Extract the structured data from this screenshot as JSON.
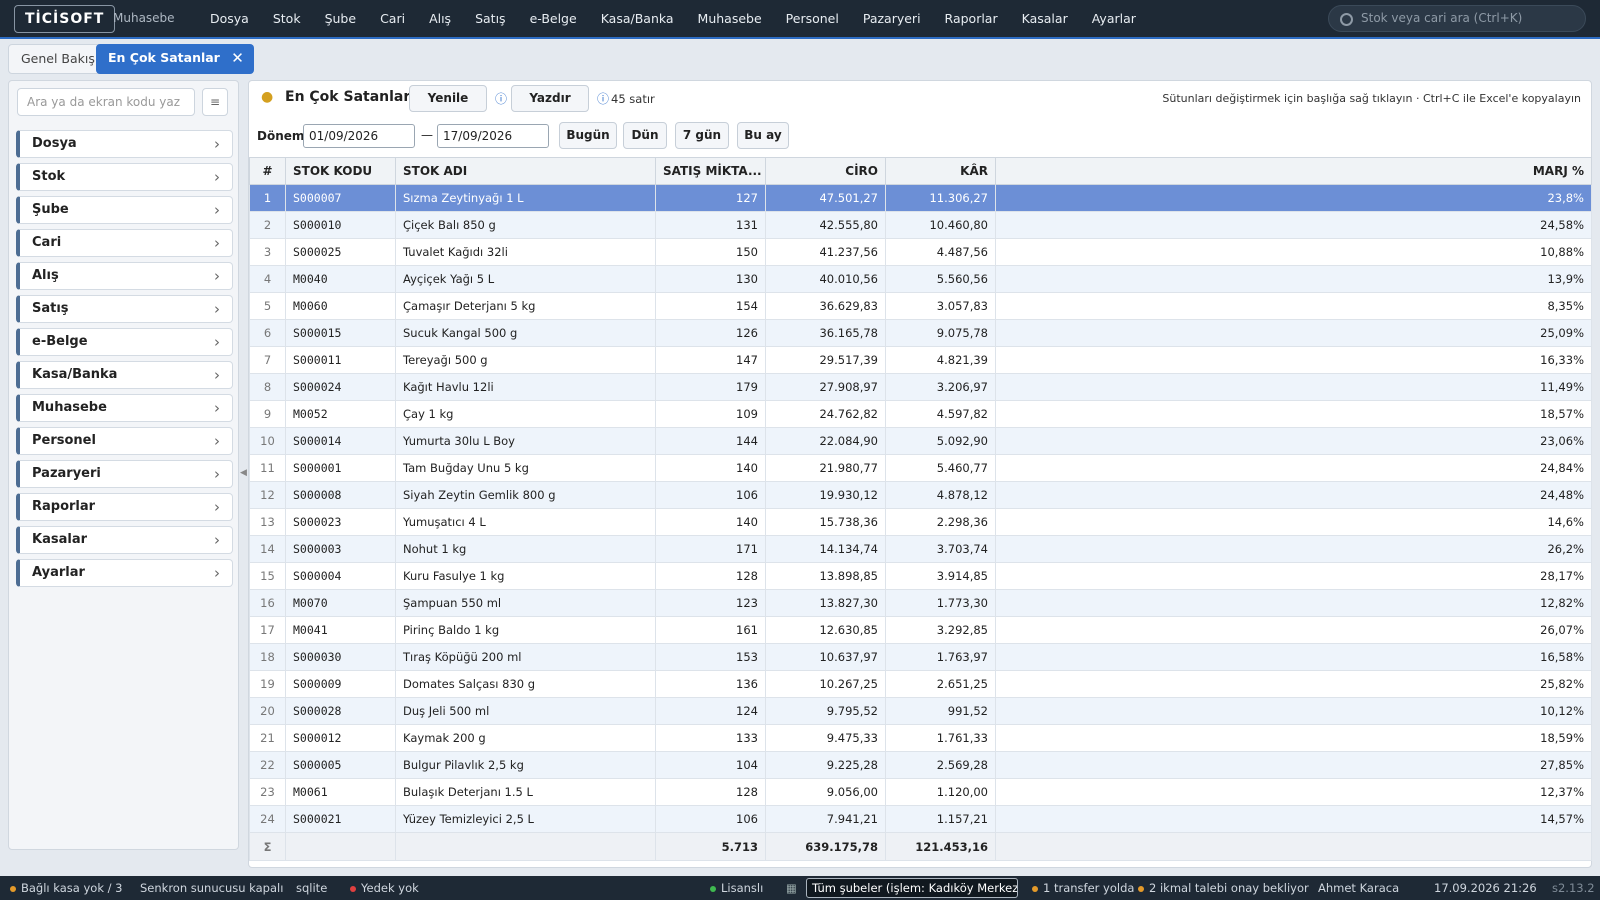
{
  "topbar": {
    "logo": "TİCİSOFT",
    "module": "Muhasebe",
    "menu": [
      "Dosya",
      "Stok",
      "Şube",
      "Cari",
      "Alış",
      "Satış",
      "e-Belge",
      "Kasa/Banka",
      "Muhasebe",
      "Personel",
      "Pazaryeri",
      "Raporlar",
      "Kasalar",
      "Ayarlar"
    ],
    "search_placeholder": "Stok veya cari ara (Ctrl+K)"
  },
  "tabs": [
    "Genel Bakış",
    "En Çok Satanlar"
  ],
  "sidebar": {
    "search_placeholder": "Ara ya da ekran kodu yaz",
    "items": [
      "Dosya",
      "Stok",
      "Şube",
      "Cari",
      "Alış",
      "Satış",
      "e-Belge",
      "Kasa/Banka",
      "Muhasebe",
      "Personel",
      "Pazaryeri",
      "Raporlar",
      "Kasalar",
      "Ayarlar"
    ]
  },
  "toolbar": {
    "title": "En Çok Satanlar",
    "refresh": "Yenile",
    "print": "Yazdır",
    "row_count": "45 satır",
    "hint": "Sütunları değiştirmek için başlığa sağ tıklayın · Ctrl+C ile Excel'e kopyalayın"
  },
  "filter": {
    "label": "Dönem",
    "start": "01/09/2026",
    "separator": "—",
    "end": "17/09/2026",
    "quick": [
      "Bugün",
      "Dün",
      "7 gün",
      "Bu ay"
    ]
  },
  "table": {
    "columns": [
      "#",
      "STOK KODU",
      "STOK ADI",
      "SATIŞ MİKTA...",
      "CİRO",
      "KÂR",
      "MARJ %"
    ],
    "rows": [
      [
        "1",
        "S000007",
        "Sızma Zeytinyağı 1 L",
        "127",
        "47.501,27",
        "11.306,27",
        "23,8%"
      ],
      [
        "2",
        "S000010",
        "Çiçek Balı 850 g",
        "131",
        "42.555,80",
        "10.460,80",
        "24,58%"
      ],
      [
        "3",
        "S000025",
        "Tuvalet Kağıdı 32li",
        "150",
        "41.237,56",
        "4.487,56",
        "10,88%"
      ],
      [
        "4",
        "M0040",
        "Ayçiçek Yağı 5 L",
        "130",
        "40.010,56",
        "5.560,56",
        "13,9%"
      ],
      [
        "5",
        "M0060",
        "Çamaşır Deterjanı 5 kg",
        "154",
        "36.629,83",
        "3.057,83",
        "8,35%"
      ],
      [
        "6",
        "S000015",
        "Sucuk Kangal 500 g",
        "126",
        "36.165,78",
        "9.075,78",
        "25,09%"
      ],
      [
        "7",
        "S000011",
        "Tereyağı 500 g",
        "147",
        "29.517,39",
        "4.821,39",
        "16,33%"
      ],
      [
        "8",
        "S000024",
        "Kağıt Havlu 12li",
        "179",
        "27.908,97",
        "3.206,97",
        "11,49%"
      ],
      [
        "9",
        "M0052",
        "Çay 1 kg",
        "109",
        "24.762,82",
        "4.597,82",
        "18,57%"
      ],
      [
        "10",
        "S000014",
        "Yumurta 30lu L Boy",
        "144",
        "22.084,90",
        "5.092,90",
        "23,06%"
      ],
      [
        "11",
        "S000001",
        "Tam Buğday Unu 5 kg",
        "140",
        "21.980,77",
        "5.460,77",
        "24,84%"
      ],
      [
        "12",
        "S000008",
        "Siyah Zeytin Gemlik 800 g",
        "106",
        "19.930,12",
        "4.878,12",
        "24,48%"
      ],
      [
        "13",
        "S000023",
        "Yumuşatıcı 4 L",
        "140",
        "15.738,36",
        "2.298,36",
        "14,6%"
      ],
      [
        "14",
        "S000003",
        "Nohut 1 kg",
        "171",
        "14.134,74",
        "3.703,74",
        "26,2%"
      ],
      [
        "15",
        "S000004",
        "Kuru Fasulye 1 kg",
        "128",
        "13.898,85",
        "3.914,85",
        "28,17%"
      ],
      [
        "16",
        "M0070",
        "Şampuan 550 ml",
        "123",
        "13.827,30",
        "1.773,30",
        "12,82%"
      ],
      [
        "17",
        "M0041",
        "Pirinç Baldo 1 kg",
        "161",
        "12.630,85",
        "3.292,85",
        "26,07%"
      ],
      [
        "18",
        "S000030",
        "Tıraş Köpüğü 200 ml",
        "153",
        "10.637,97",
        "1.763,97",
        "16,58%"
      ],
      [
        "19",
        "S000009",
        "Domates Salçası 830 g",
        "136",
        "10.267,25",
        "2.651,25",
        "25,82%"
      ],
      [
        "20",
        "S000028",
        "Duş Jeli 500 ml",
        "124",
        "9.795,52",
        "991,52",
        "10,12%"
      ],
      [
        "21",
        "S000012",
        "Kaymak 200 g",
        "133",
        "9.475,33",
        "1.761,33",
        "18,59%"
      ],
      [
        "22",
        "S000005",
        "Bulgur Pilavlık 2,5 kg",
        "104",
        "9.225,28",
        "2.569,28",
        "27,85%"
      ],
      [
        "23",
        "M0061",
        "Bulaşık Deterjanı 1.5 L",
        "128",
        "9.056,00",
        "1.120,00",
        "12,37%"
      ],
      [
        "24",
        "S000021",
        "Yüzey Temizleyici 2,5 L",
        "106",
        "7.941,21",
        "1.157,21",
        "14,57%"
      ]
    ],
    "footer": {
      "symbol": "Σ",
      "quantity": "5.713",
      "revenue": "639.175,78",
      "profit": "121.453,16"
    }
  },
  "statusbar": {
    "left": [
      "Bağlı kasa yok / 3",
      "Senkron sunucusu kapalı",
      "sqlite",
      "Yedek yok"
    ],
    "license": "Lisanslı",
    "branch": "Tüm şubeler (işlem: Kadıköy Merkez)",
    "right": [
      "1 transfer yolda",
      "2 ikmal talebi onay bekliyor",
      "Ahmet Karaca",
      "17.09.2026 21:26",
      "s2.13.2"
    ]
  }
}
